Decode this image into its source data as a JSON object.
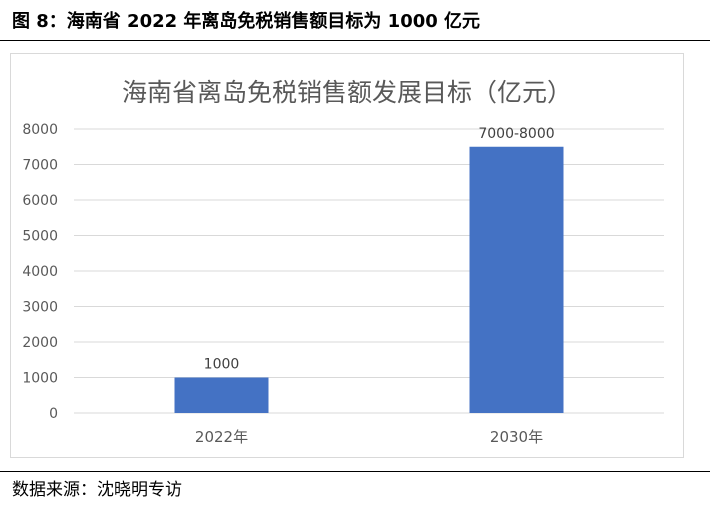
{
  "figure": {
    "title": "图 8：海南省 2022 年离岛免税销售额目标为 1000 亿元",
    "source": "数据来源：沈晓明专访"
  },
  "colors": {
    "bar": "#4472c4",
    "grid": "#d9d9d9",
    "tick_text": "#595959",
    "chart_title": "#595959"
  },
  "chart_data": {
    "type": "bar",
    "title": "海南省离岛免税销售额发展目标（亿元）",
    "xlabel": "",
    "ylabel": "",
    "categories": [
      "2022年",
      "2030年"
    ],
    "values": [
      1000,
      7500
    ],
    "data_labels": [
      "1000",
      "7000-8000"
    ],
    "ylim": [
      0,
      8000
    ],
    "yticks": [
      0,
      1000,
      2000,
      3000,
      4000,
      5000,
      6000,
      7000,
      8000
    ],
    "grid": true,
    "legend": "none"
  }
}
